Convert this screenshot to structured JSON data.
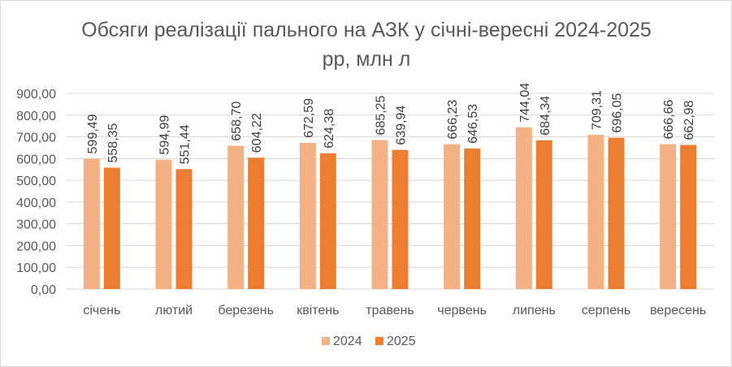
{
  "chart_data": {
    "type": "bar",
    "title": "Обсяги реалізації пального на АЗК у січні-вересні 2024-2025 рр, млн л",
    "xlabel": "",
    "ylabel": "",
    "categories": [
      "січень",
      "лютий",
      "березень",
      "квітень",
      "травень",
      "червень",
      "липень",
      "серпень",
      "вересень"
    ],
    "series": [
      {
        "name": "2024",
        "color": "#f4b183",
        "values": [
          599.49,
          594.99,
          658.7,
          672.59,
          685.25,
          666.23,
          744.04,
          709.31,
          666.66
        ],
        "labels": [
          "599,49",
          "594,99",
          "658,70",
          "672,59",
          "685,25",
          "666,23",
          "744,04",
          "709,31",
          "666,66"
        ]
      },
      {
        "name": "2025",
        "color": "#ed7d31",
        "values": [
          558.35,
          551.44,
          604.22,
          624.38,
          639.94,
          646.53,
          684.34,
          696.05,
          662.98
        ],
        "labels": [
          "558,35",
          "551,44",
          "604,22",
          "624,38",
          "639,94",
          "646,53",
          "684,34",
          "696,05",
          "662,98"
        ]
      }
    ],
    "ylim": [
      0,
      900
    ],
    "yticks": [
      0,
      100,
      200,
      300,
      400,
      500,
      600,
      700,
      800,
      900
    ],
    "ytick_labels": [
      "0,00",
      "100,00",
      "200,00",
      "300,00",
      "400,00",
      "500,00",
      "600,00",
      "700,00",
      "800,00",
      "900,00"
    ],
    "grid": true,
    "legend_position": "bottom"
  }
}
